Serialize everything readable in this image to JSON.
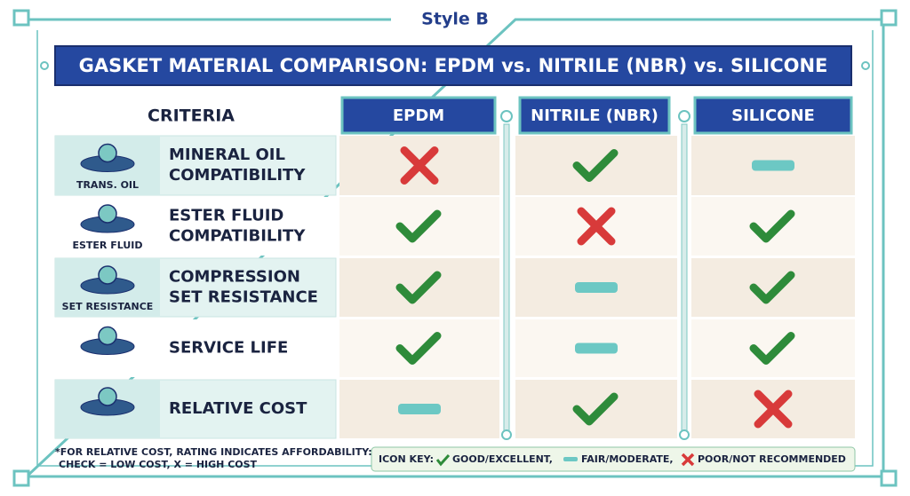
{
  "header": {
    "style_label": "Style B",
    "title": "GASKET MATERIAL COMPARISON: EPDM vs. NITRILE (NBR) vs. SILICONE"
  },
  "table": {
    "criteria_heading": "CRITERIA",
    "columns": [
      "EPDM",
      "NITRILE (NBR)",
      "SILICONE"
    ],
    "rows": [
      {
        "icon_caption": "TRANS. OIL",
        "label": [
          "MINERAL OIL",
          "COMPATIBILITY"
        ]
      },
      {
        "icon_caption": "ESTER FLUID",
        "label": [
          "ESTER FLUID",
          "COMPATIBILITY"
        ]
      },
      {
        "icon_caption": "SET RESISTANCE",
        "label": [
          "COMPRESSION",
          "SET RESISTANCE"
        ]
      },
      {
        "icon_caption": null,
        "label": [
          "SERVICE LIFE"
        ]
      },
      {
        "icon_caption": null,
        "label": [
          "RELATIVE COST"
        ]
      }
    ]
  },
  "footnote": [
    "*FOR RELATIVE COST, RATING INDICATES AFFORDABILITY:",
    "CHECK = LOW COST,  X = HIGH COST"
  ],
  "icon_key": {
    "heading": "ICON KEY:",
    "good": "GOOD/EXCELLENT,",
    "fair": "FAIR/MODERATE,",
    "poor": "POOR/NOT RECOMMENDED"
  }
}
